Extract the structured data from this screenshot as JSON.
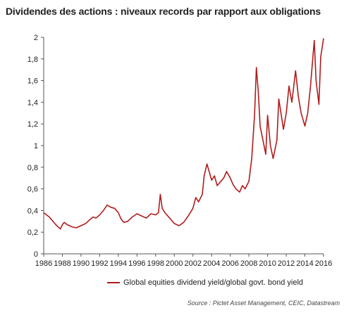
{
  "title": "Dividendes des actions : niveaux records par rapport aux obligations",
  "source": "Source : Pictet Asset Management, CEIC, Datastream",
  "colors": {
    "series": "#b01c1c",
    "axis": "#555555"
  },
  "chart_data": {
    "type": "line",
    "title": "Dividendes des actions : niveaux records par rapport aux obligations",
    "xlabel": "",
    "ylabel": "",
    "xlim": [
      1986,
      2016
    ],
    "ylim": [
      0,
      2
    ],
    "xticks": [
      1986,
      1988,
      1990,
      1992,
      1994,
      1996,
      1998,
      2000,
      2002,
      2004,
      2006,
      2008,
      2010,
      2012,
      2014,
      2016
    ],
    "yticks": [
      0,
      0.2,
      0.4,
      0.6,
      0.8,
      1,
      1.2,
      1.4,
      1.6,
      1.8,
      2
    ],
    "ytick_labels": [
      "0",
      "0,2",
      "0,4",
      "0,6",
      "0,8",
      "1",
      "1,2",
      "1,4",
      "1,6",
      "1,8",
      "2"
    ],
    "grid": false,
    "legend": "bottom",
    "series": [
      {
        "name": "Global equities dividend yield/global govt. bond yield",
        "x": [
          1986.0,
          1986.3,
          1986.6,
          1987.0,
          1987.4,
          1987.8,
          1988.0,
          1988.2,
          1988.5,
          1989.0,
          1989.5,
          1990.0,
          1990.5,
          1991.0,
          1991.3,
          1991.6,
          1992.0,
          1992.4,
          1992.8,
          1993.2,
          1993.6,
          1994.0,
          1994.3,
          1994.6,
          1995.0,
          1995.5,
          1996.0,
          1996.5,
          1997.0,
          1997.5,
          1998.0,
          1998.3,
          1998.5,
          1998.7,
          1999.0,
          1999.5,
          2000.0,
          2000.5,
          2001.0,
          2001.5,
          2002.0,
          2002.3,
          2002.6,
          2003.0,
          2003.2,
          2003.5,
          2003.8,
          2004.0,
          2004.3,
          2004.6,
          2005.0,
          2005.3,
          2005.6,
          2006.0,
          2006.3,
          2006.6,
          2007.0,
          2007.3,
          2007.6,
          2008.0,
          2008.3,
          2008.6,
          2008.8,
          2009.0,
          2009.2,
          2009.5,
          2009.8,
          2010.0,
          2010.3,
          2010.6,
          2011.0,
          2011.2,
          2011.4,
          2011.7,
          2012.0,
          2012.3,
          2012.6,
          2013.0,
          2013.3,
          2013.6,
          2014.0,
          2014.3,
          2014.6,
          2015.0,
          2015.2,
          2015.5,
          2015.7,
          2016.0
        ],
        "y": [
          0.38,
          0.36,
          0.34,
          0.3,
          0.26,
          0.23,
          0.27,
          0.29,
          0.27,
          0.25,
          0.24,
          0.26,
          0.28,
          0.32,
          0.34,
          0.33,
          0.36,
          0.4,
          0.45,
          0.43,
          0.42,
          0.38,
          0.32,
          0.29,
          0.3,
          0.34,
          0.37,
          0.35,
          0.33,
          0.37,
          0.36,
          0.38,
          0.55,
          0.42,
          0.38,
          0.33,
          0.28,
          0.26,
          0.29,
          0.35,
          0.42,
          0.52,
          0.48,
          0.55,
          0.72,
          0.83,
          0.74,
          0.68,
          0.72,
          0.63,
          0.67,
          0.7,
          0.76,
          0.7,
          0.64,
          0.6,
          0.57,
          0.63,
          0.6,
          0.67,
          0.88,
          1.28,
          1.72,
          1.5,
          1.18,
          1.05,
          0.92,
          1.28,
          1.0,
          0.88,
          1.05,
          1.43,
          1.32,
          1.15,
          1.3,
          1.55,
          1.4,
          1.69,
          1.45,
          1.3,
          1.18,
          1.3,
          1.55,
          1.97,
          1.6,
          1.38,
          1.82,
          1.99
        ]
      }
    ]
  }
}
